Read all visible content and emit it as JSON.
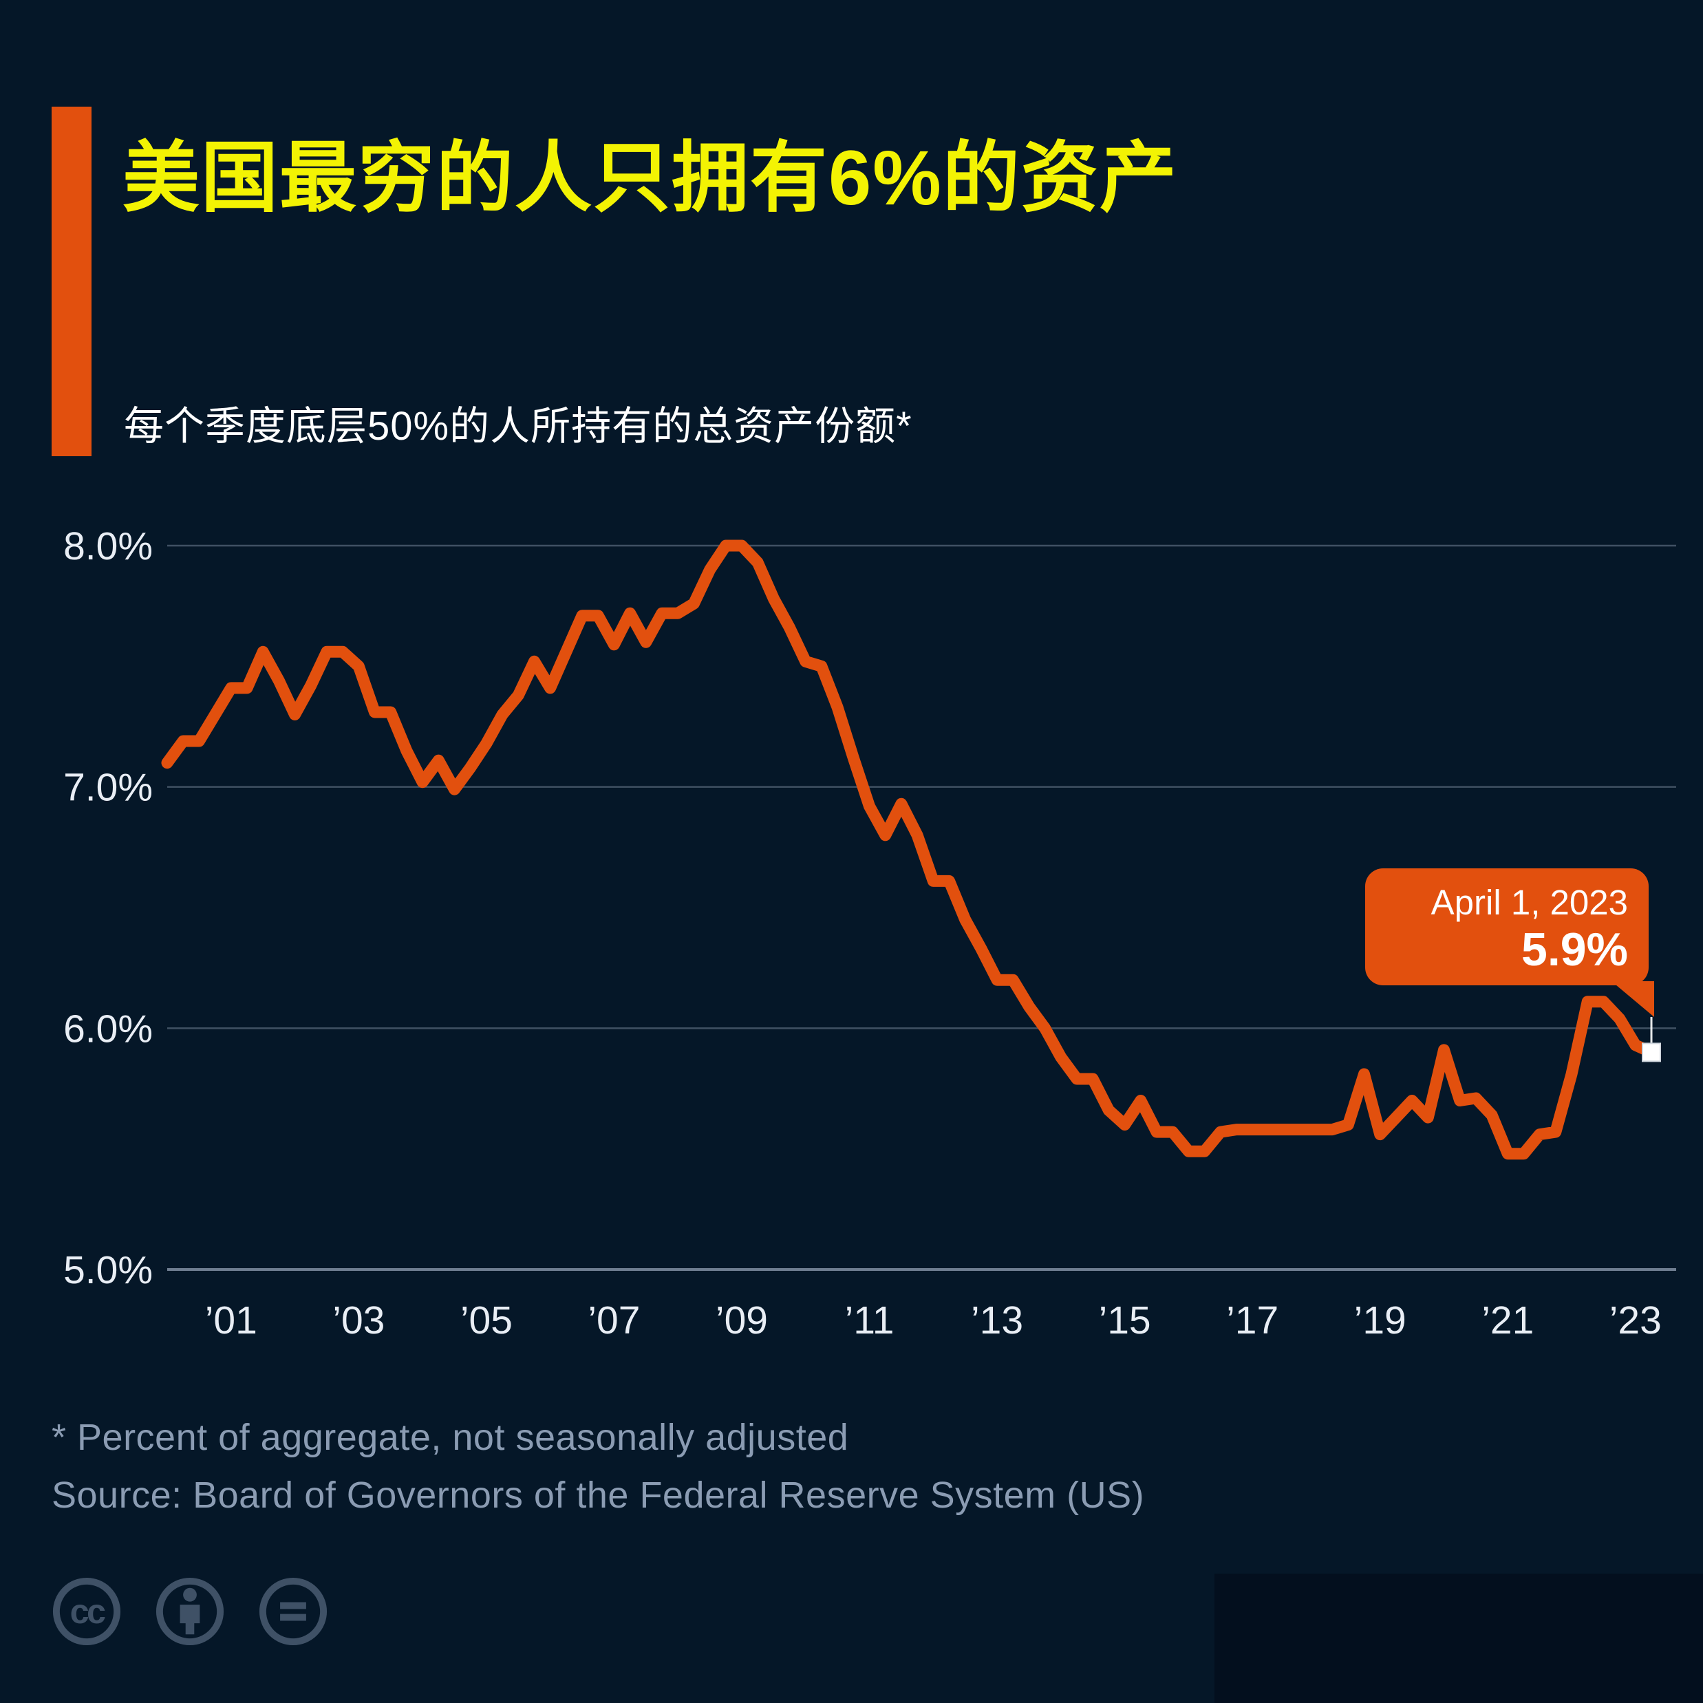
{
  "header": {
    "title": "美国最穷的人只拥有6%的资产",
    "subtitle": "每个季度底层50%的人所持有的总资产份额*"
  },
  "tooltip": {
    "date": "April 1, 2023",
    "value": "5.9%"
  },
  "footer": {
    "footnote": "* Percent of aggregate, not seasonally adjusted",
    "source": "Source: Board of Governors of the Federal Reserve System (US)"
  },
  "license_icons": [
    {
      "name": "cc-icon",
      "label": "cc"
    },
    {
      "name": "cc-by-icon",
      "label": "attribution-person"
    },
    {
      "name": "cc-nd-icon",
      "label": "equals"
    }
  ],
  "colors": {
    "background": "#051728",
    "accent_orange": "#e2500e",
    "title_yellow": "#f3f303",
    "text_white": "#ffffff",
    "axis_text": "#e9eef5",
    "muted_text": "#8b9cb3",
    "grid_color": "#8a98ab",
    "icon_color": "#3f5166",
    "marker_white": "#ffffff"
  },
  "chart_data": {
    "type": "line",
    "frequency": "quarterly",
    "x_start": "2000-Q1",
    "x_end": "2023-Q2",
    "series_name": "Share of total assets held by the bottom 50%",
    "values": [
      7.1,
      7.19,
      7.19,
      7.3,
      7.41,
      7.41,
      7.56,
      7.44,
      7.3,
      7.42,
      7.56,
      7.56,
      7.5,
      7.31,
      7.31,
      7.15,
      7.02,
      7.11,
      6.99,
      7.08,
      7.18,
      7.3,
      7.38,
      7.52,
      7.41,
      7.56,
      7.71,
      7.71,
      7.59,
      7.72,
      7.6,
      7.72,
      7.72,
      7.76,
      7.9,
      8.0,
      8.0,
      7.93,
      7.78,
      7.66,
      7.52,
      7.5,
      7.33,
      7.12,
      6.92,
      6.8,
      6.93,
      6.8,
      6.61,
      6.61,
      6.45,
      6.33,
      6.2,
      6.2,
      6.09,
      6.0,
      5.88,
      5.79,
      5.79,
      5.66,
      5.6,
      5.7,
      5.57,
      5.57,
      5.49,
      5.49,
      5.57,
      5.58,
      5.58,
      5.58,
      5.58,
      5.58,
      5.58,
      5.58,
      5.6,
      5.81,
      5.56,
      5.63,
      5.7,
      5.63,
      5.91,
      5.7,
      5.71,
      5.64,
      5.48,
      5.48,
      5.56,
      5.57,
      5.81,
      6.11,
      6.11,
      6.04,
      5.93,
      5.9
    ],
    "last_point": {
      "date": "April 1, 2023",
      "value": 5.9
    },
    "ylim": [
      5.0,
      8.0
    ],
    "y_ticks": [
      {
        "label": "8.0%",
        "value": 8.0
      },
      {
        "label": "7.0%",
        "value": 7.0
      },
      {
        "label": "6.0%",
        "value": 6.0
      },
      {
        "label": "5.0%",
        "value": 5.0
      }
    ],
    "x_ticks": [
      {
        "label": "’01",
        "year": 2001
      },
      {
        "label": "’03",
        "year": 2003
      },
      {
        "label": "’05",
        "year": 2005
      },
      {
        "label": "’07",
        "year": 2007
      },
      {
        "label": "’09",
        "year": 2009
      },
      {
        "label": "’11",
        "year": 2011
      },
      {
        "label": "’13",
        "year": 2013
      },
      {
        "label": "’15",
        "year": 2015
      },
      {
        "label": "’17",
        "year": 2017
      },
      {
        "label": "’19",
        "year": 2019
      },
      {
        "label": "’21",
        "year": 2021
      },
      {
        "label": "’23",
        "year": 2023
      }
    ],
    "grid": true,
    "legend": "none",
    "line_color": "#e2500e",
    "xlabel": "",
    "ylabel": ""
  }
}
